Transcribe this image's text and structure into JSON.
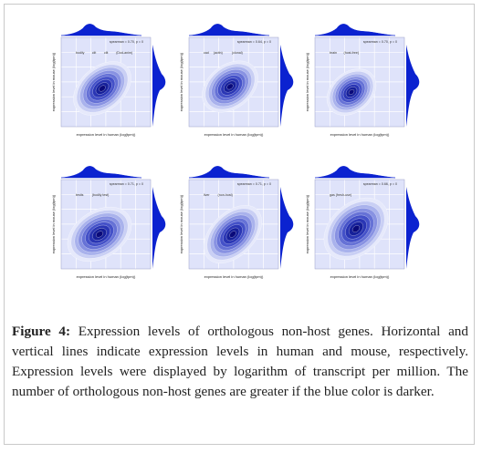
{
  "figure": {
    "caption_label": "Figure 4:",
    "caption_text": "Expression levels of orthologous non-host genes. Horizontal and vertical lines indicate expression levels in human and mouse, respectively. Expression levels were displayed by logarithm of transcript per million. The number of orthologous non-host genes are greater if the blue color is darker.",
    "colors": {
      "density_dark": "#0a0a8a",
      "density_light": "#dfe3fa",
      "background": "#ffffff",
      "frame": "#c9c9c9"
    },
    "panels": [
      {
        "xlabel": "expression level in human (log(tpm))",
        "ylabel": "expression level in mouse (log(tpm))",
        "corr": "spearman = 0.70, p = 0",
        "tags": [
          "bodily",
          "clit",
          "clit",
          "(Dod-anim)"
        ]
      },
      {
        "xlabel": "expression level in human (log(tpm))",
        "ylabel": "expression level in mouse (log(tpm))",
        "corr": "spearman = 0.64, p = 0",
        "tags": [
          "cad",
          "(actin)",
          "(clonal)"
        ]
      },
      {
        "xlabel": "expression level in human (log(tpm))",
        "ylabel": "expression level in mouse (log(tpm))",
        "corr": "spearman = 0.70, p = 0",
        "tags": [
          "brain",
          "(host-free)"
        ]
      },
      {
        "xlabel": "expression level in human (log(tpm))",
        "ylabel": "expression level in mouse (log(tpm))",
        "corr": "spearman = 0.71, p = 0",
        "tags": [
          "testis",
          "(bodily test)"
        ]
      },
      {
        "xlabel": "expression level in human (log(tpm))",
        "ylabel": "expression level in mouse (log(tpm))",
        "corr": "spearman = 0.71, p = 0",
        "tags": [
          "liver",
          "(non-host)"
        ]
      },
      {
        "xlabel": "expression level in human (log(tpm))",
        "ylabel": "expression level in mouse (log(tpm))",
        "corr": "spearman = 0.66, p = 0",
        "tags": [
          "gas (fresh-use)"
        ]
      }
    ]
  }
}
